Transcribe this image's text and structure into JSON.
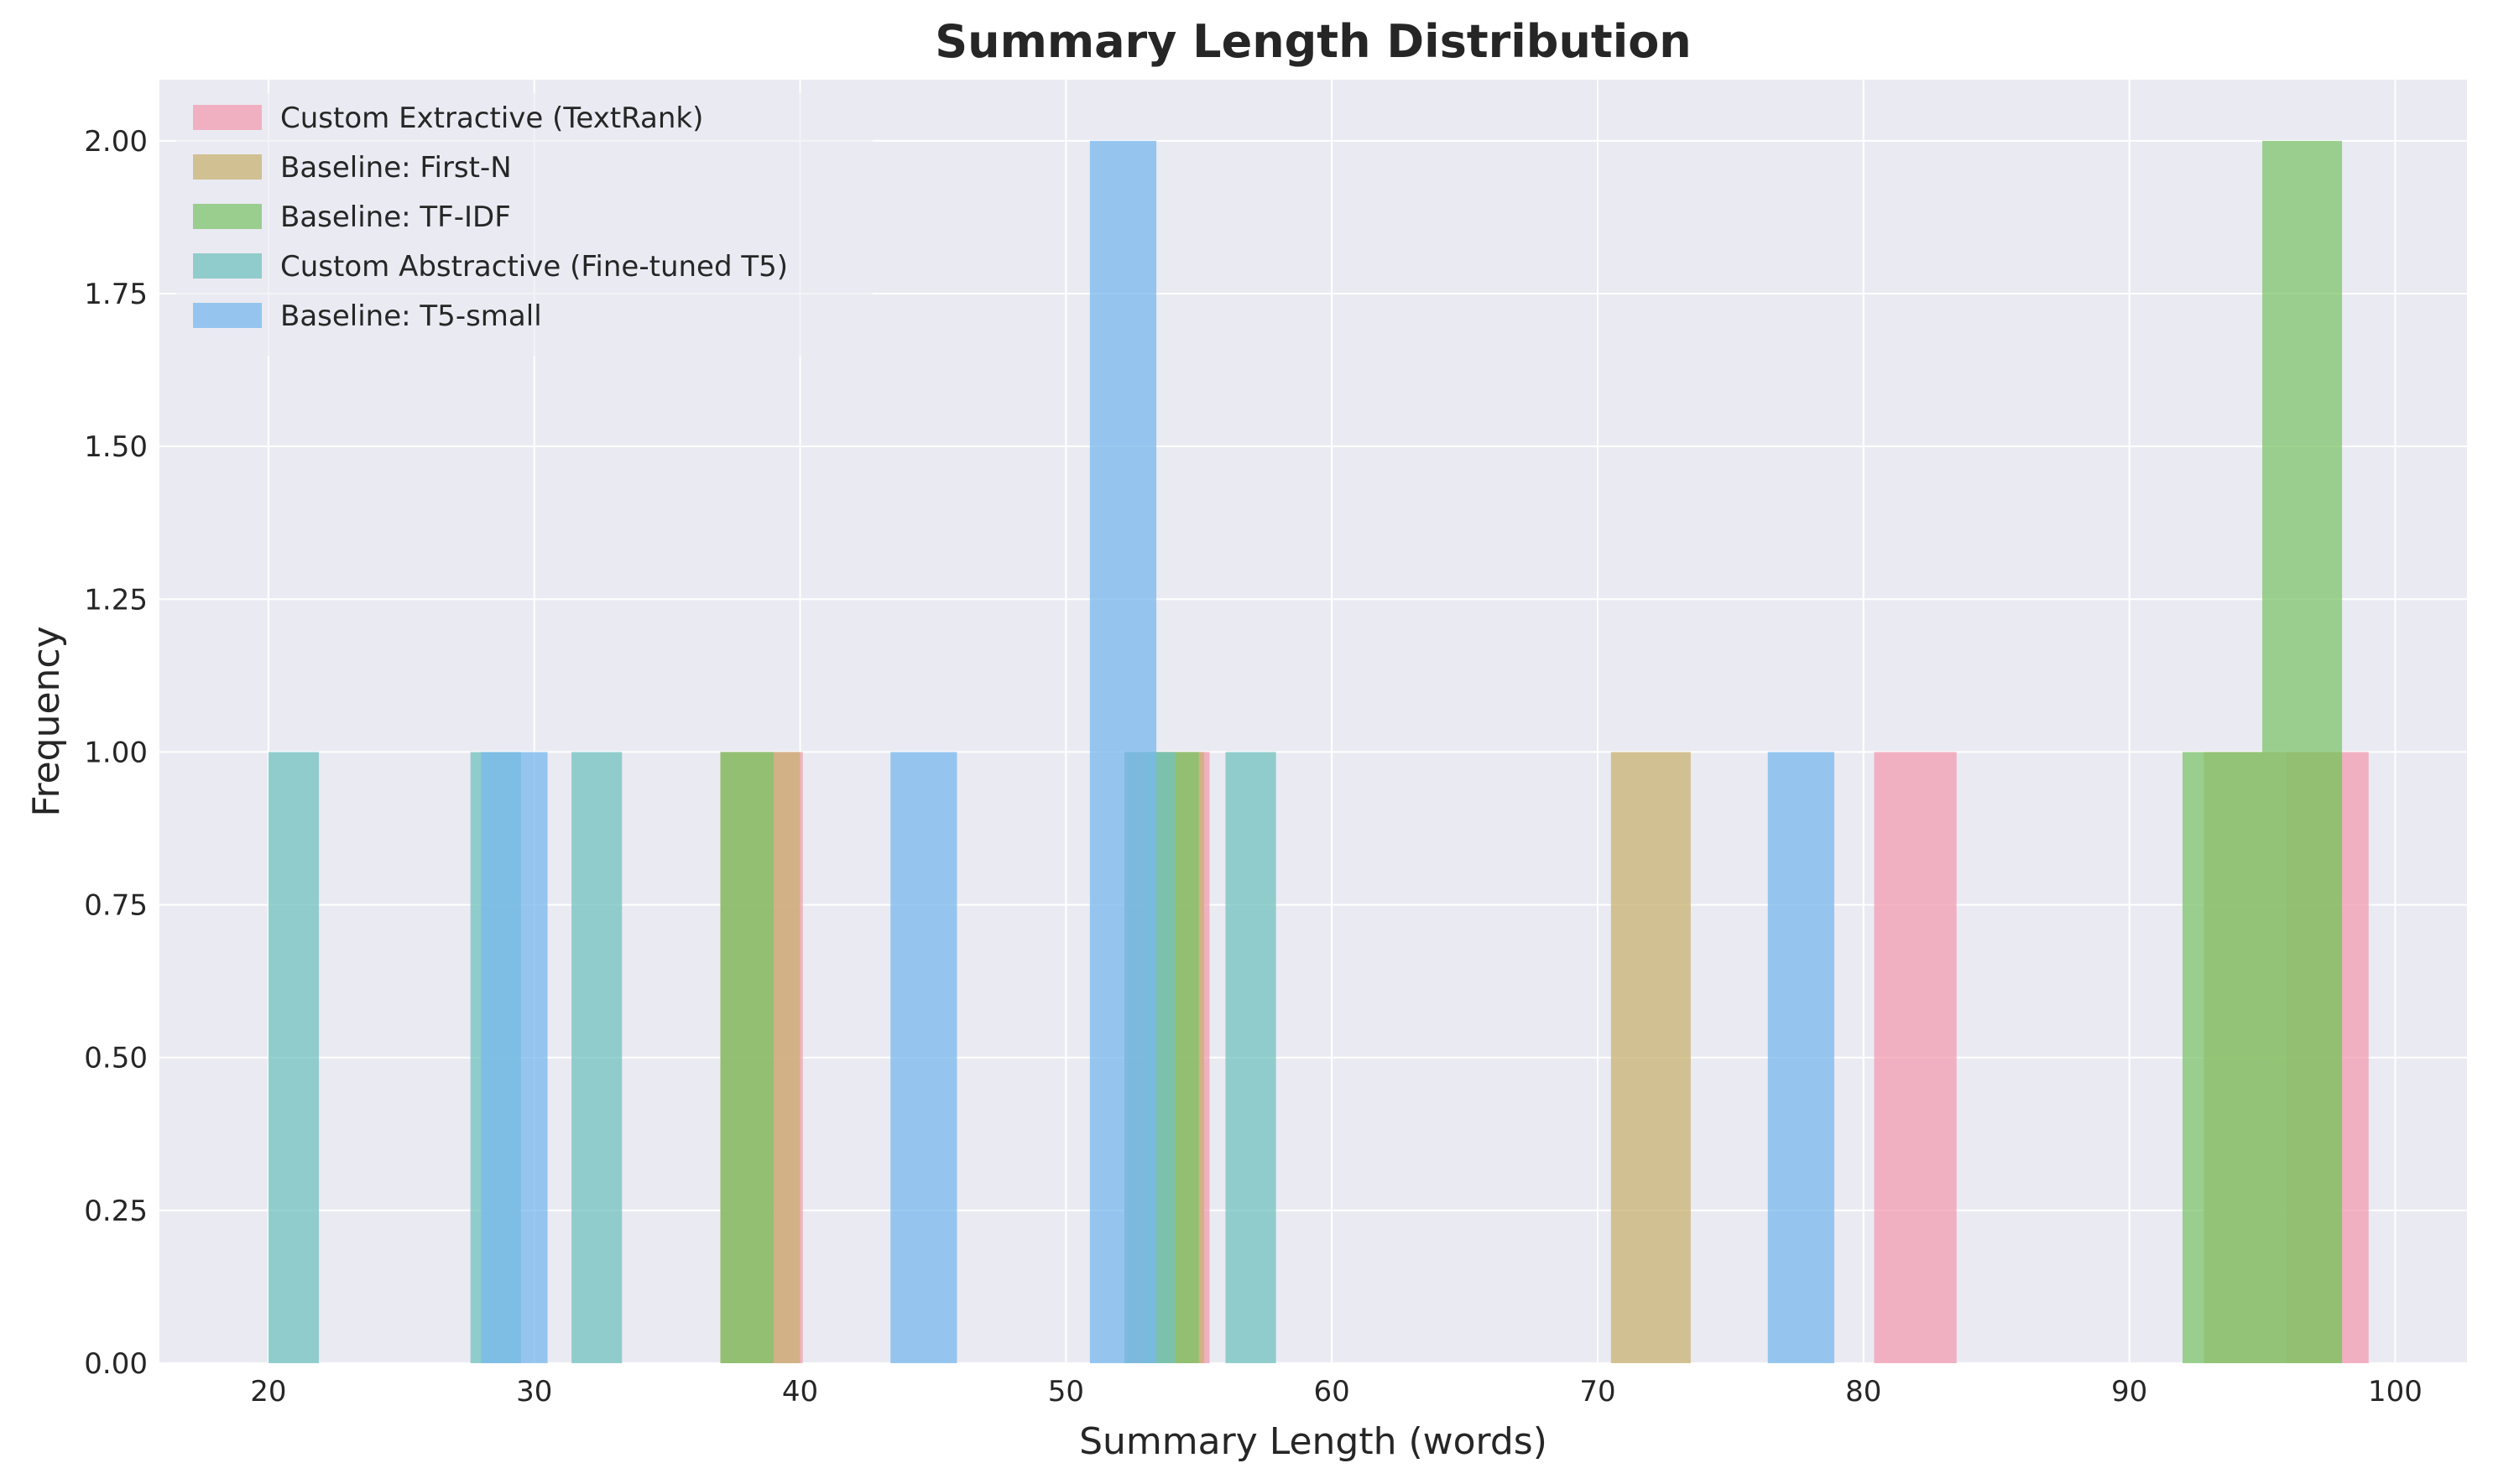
{
  "chart_data": {
    "type": "bar",
    "title": "Summary Length Distribution",
    "xlabel": "Summary Length (words)",
    "ylabel": "Frequency",
    "xlim": [
      15.9,
      102.7
    ],
    "ylim": [
      0,
      2.1
    ],
    "x_ticks": [
      20,
      30,
      40,
      50,
      60,
      70,
      80,
      90,
      100
    ],
    "x_tick_labels": [
      "20",
      "30",
      "40",
      "50",
      "60",
      "70",
      "80",
      "90",
      "100"
    ],
    "y_ticks": [
      0,
      0.25,
      0.5,
      0.75,
      1.0,
      1.25,
      1.5,
      1.75,
      2.0
    ],
    "y_tick_labels": [
      "0.00",
      "0.25",
      "0.50",
      "0.75",
      "1.00",
      "1.25",
      "1.50",
      "1.75",
      "2.00"
    ],
    "grid": true,
    "legend_position": "top-left",
    "background_color": "#eaeaf2",
    "series": [
      {
        "name": "Custom Extractive (TextRank)",
        "color": "#f19cb0",
        "bins": [
          {
            "x0": 37.0,
            "x1": 40.1,
            "count": 1
          },
          {
            "x0": 52.3,
            "x1": 55.4,
            "count": 1
          },
          {
            "x0": 80.4,
            "x1": 83.5,
            "count": 1
          },
          {
            "x0": 95.9,
            "x1": 99.0,
            "count": 1
          }
        ]
      },
      {
        "name": "Baseline: First-N",
        "color": "#c8b272",
        "bins": [
          {
            "x0": 37.0,
            "x1": 40.0,
            "count": 1
          },
          {
            "x0": 52.2,
            "x1": 55.2,
            "count": 1
          },
          {
            "x0": 70.5,
            "x1": 73.5,
            "count": 1
          },
          {
            "x0": 92.8,
            "x1": 98.0,
            "count": 1
          }
        ]
      },
      {
        "name": "Baseline: TF-IDF",
        "color": "#7dc46c",
        "bins": [
          {
            "x0": 37.0,
            "x1": 39.0,
            "count": 1
          },
          {
            "x0": 53.0,
            "x1": 55.0,
            "count": 1
          },
          {
            "x0": 92.0,
            "x1": 95.0,
            "count": 1
          },
          {
            "x0": 95.0,
            "x1": 98.0,
            "count": 2
          }
        ]
      },
      {
        "name": "Custom Abstractive (Fine-tuned T5)",
        "color": "#73c1bf",
        "bins": [
          {
            "x0": 20.0,
            "x1": 21.9,
            "count": 1
          },
          {
            "x0": 27.6,
            "x1": 29.5,
            "count": 1
          },
          {
            "x0": 31.4,
            "x1": 33.3,
            "count": 1
          },
          {
            "x0": 52.2,
            "x1": 54.1,
            "count": 1
          },
          {
            "x0": 56.0,
            "x1": 57.9,
            "count": 1
          }
        ]
      },
      {
        "name": "Baseline: T5-small",
        "color": "#78b8ec",
        "bins": [
          {
            "x0": 28.0,
            "x1": 30.5,
            "count": 1
          },
          {
            "x0": 43.4,
            "x1": 45.9,
            "count": 1
          },
          {
            "x0": 50.9,
            "x1": 53.4,
            "count": 2
          },
          {
            "x0": 76.4,
            "x1": 78.9,
            "count": 1
          }
        ]
      }
    ]
  }
}
